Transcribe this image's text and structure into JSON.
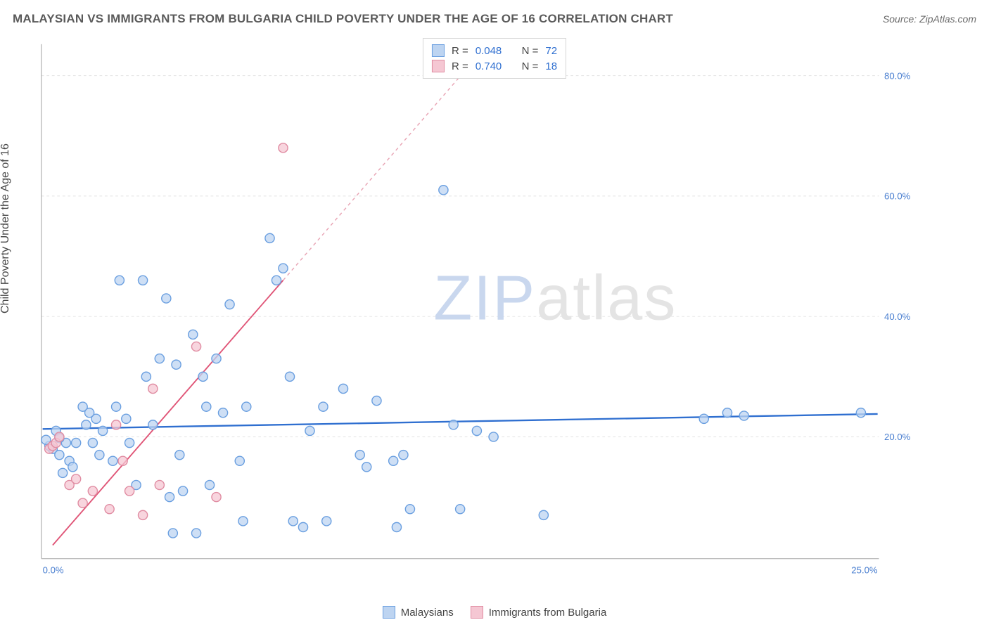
{
  "header": {
    "title": "MALAYSIAN VS IMMIGRANTS FROM BULGARIA CHILD POVERTY UNDER THE AGE OF 16 CORRELATION CHART",
    "source_prefix": "Source: ",
    "source_name": "ZipAtlas.com"
  },
  "ylabel": "Child Poverty Under the Age of 16",
  "watermark": {
    "part1": "ZIP",
    "part2": "atlas"
  },
  "axes": {
    "xlim": [
      0,
      25
    ],
    "ylim": [
      0,
      85
    ],
    "x_ticks": [
      {
        "v": 0,
        "label": "0.0%"
      },
      {
        "v": 25,
        "label": "25.0%"
      }
    ],
    "y_ticks": [
      {
        "v": 20,
        "label": "20.0%"
      },
      {
        "v": 40,
        "label": "40.0%"
      },
      {
        "v": 60,
        "label": "60.0%"
      },
      {
        "v": 80,
        "label": "80.0%"
      }
    ],
    "grid_color": "#e2e2e2",
    "axis_line_color": "#bcbcbc",
    "tick_label_color": "#4a7fd0",
    "background_color": "#ffffff"
  },
  "series": {
    "malaysians": {
      "label": "Malaysians",
      "color_fill": "#bdd4f1",
      "color_stroke": "#6a9fe0",
      "marker_radius": 7,
      "R": "0.048",
      "N": "72",
      "trend": {
        "x1": 0,
        "y1": 21.3,
        "x2": 25,
        "y2": 23.8,
        "stroke": "#2f6fd0",
        "width": 2.5,
        "dash": ""
      },
      "points": [
        [
          0.3,
          18
        ],
        [
          0.5,
          17
        ],
        [
          0.7,
          19
        ],
        [
          0.4,
          21
        ],
        [
          0.6,
          14
        ],
        [
          0.8,
          16
        ],
        [
          0.2,
          18.5
        ],
        [
          0.1,
          19.5
        ],
        [
          0.5,
          19.8
        ],
        [
          0.9,
          15
        ],
        [
          1.0,
          19
        ],
        [
          1.2,
          25
        ],
        [
          1.3,
          22
        ],
        [
          1.5,
          19
        ],
        [
          1.6,
          23
        ],
        [
          1.7,
          17
        ],
        [
          1.8,
          21
        ],
        [
          1.4,
          24
        ],
        [
          2.1,
          16
        ],
        [
          2.2,
          25
        ],
        [
          2.3,
          46
        ],
        [
          2.5,
          23
        ],
        [
          2.6,
          19
        ],
        [
          2.8,
          12
        ],
        [
          3.0,
          46
        ],
        [
          3.1,
          30
        ],
        [
          3.3,
          22
        ],
        [
          3.5,
          33
        ],
        [
          3.7,
          43
        ],
        [
          3.8,
          10
        ],
        [
          3.9,
          4
        ],
        [
          4.0,
          32
        ],
        [
          4.1,
          17
        ],
        [
          4.2,
          11
        ],
        [
          4.5,
          37
        ],
        [
          4.8,
          30
        ],
        [
          4.9,
          25
        ],
        [
          4.6,
          4
        ],
        [
          5.0,
          12
        ],
        [
          5.2,
          33
        ],
        [
          5.4,
          24
        ],
        [
          5.6,
          42
        ],
        [
          5.9,
          16
        ],
        [
          6.0,
          6
        ],
        [
          6.1,
          25
        ],
        [
          6.8,
          53
        ],
        [
          7.0,
          46
        ],
        [
          7.2,
          48
        ],
        [
          7.4,
          30
        ],
        [
          7.5,
          6
        ],
        [
          7.8,
          5
        ],
        [
          8.0,
          21
        ],
        [
          8.4,
          25
        ],
        [
          8.5,
          6
        ],
        [
          9.0,
          28
        ],
        [
          9.5,
          17
        ],
        [
          9.7,
          15
        ],
        [
          10.0,
          26
        ],
        [
          10.5,
          16
        ],
        [
          10.6,
          5
        ],
        [
          10.8,
          17
        ],
        [
          11.0,
          8
        ],
        [
          12.0,
          61
        ],
        [
          12.3,
          22
        ],
        [
          12.5,
          8
        ],
        [
          13.0,
          21
        ],
        [
          13.5,
          20
        ],
        [
          15.0,
          7
        ],
        [
          19.8,
          23
        ],
        [
          20.5,
          24
        ],
        [
          21.0,
          23.5
        ],
        [
          24.5,
          24
        ]
      ]
    },
    "bulgaria": {
      "label": "Immigrants from Bulgaria",
      "color_fill": "#f5c7d3",
      "color_stroke": "#e08ca2",
      "marker_radius": 7,
      "R": "0.740",
      "N": "18",
      "trend_solid": {
        "x1": 0.3,
        "y1": 2,
        "x2": 7.2,
        "y2": 46,
        "stroke": "#e05577",
        "width": 2,
        "dash": ""
      },
      "trend_dash": {
        "x1": 7.2,
        "y1": 46,
        "x2": 13.3,
        "y2": 85,
        "stroke": "#e8a3b3",
        "width": 1.5,
        "dash": "5,5"
      },
      "points": [
        [
          0.2,
          18
        ],
        [
          0.3,
          18.5
        ],
        [
          0.4,
          19
        ],
        [
          0.5,
          20
        ],
        [
          0.8,
          12
        ],
        [
          1.0,
          13
        ],
        [
          1.2,
          9
        ],
        [
          1.5,
          11
        ],
        [
          2.0,
          8
        ],
        [
          2.2,
          22
        ],
        [
          2.4,
          16
        ],
        [
          2.6,
          11
        ],
        [
          3.0,
          7
        ],
        [
          3.3,
          28
        ],
        [
          3.5,
          12
        ],
        [
          4.6,
          35
        ],
        [
          5.2,
          10
        ],
        [
          7.2,
          68
        ]
      ]
    }
  },
  "corr_box": {
    "labels": {
      "R": "R =",
      "N": "N ="
    }
  },
  "bottom_legend_order": [
    "malaysians",
    "bulgaria"
  ]
}
